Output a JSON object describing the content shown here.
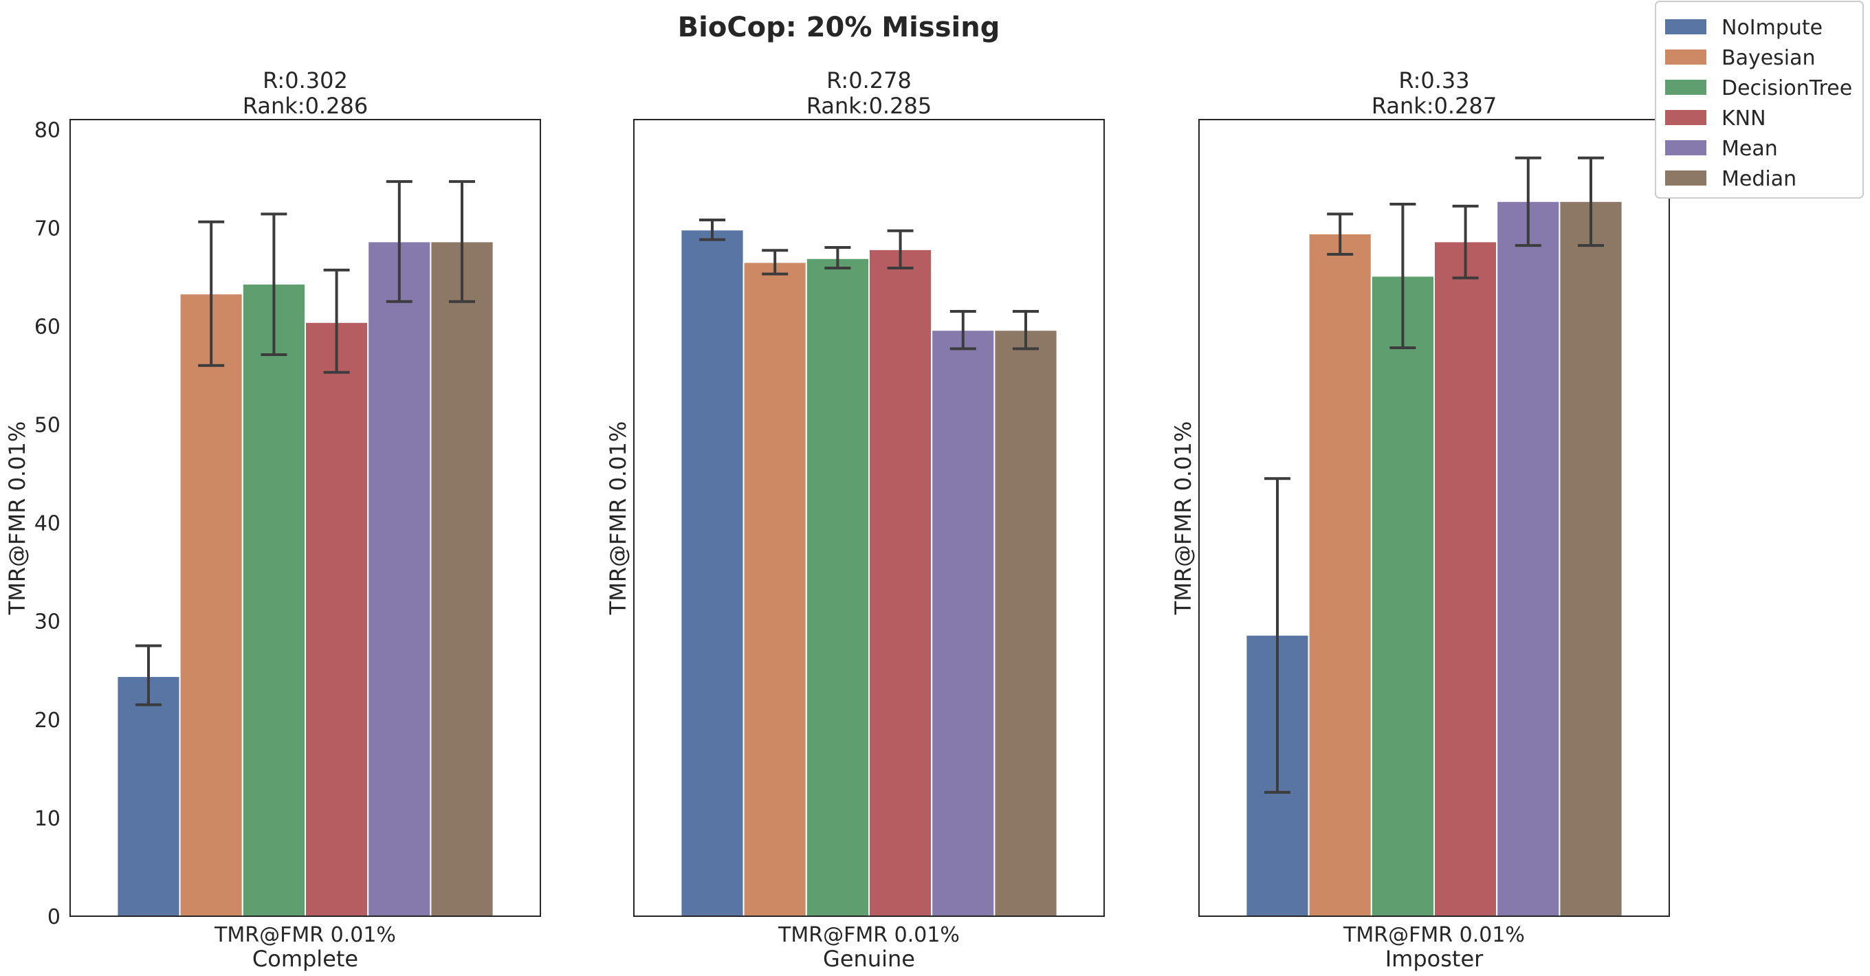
{
  "title": "BioCop: 20% Missing",
  "legend": {
    "placement": "top-right",
    "entries": [
      "NoImpute",
      "Bayesian",
      "DecisionTree",
      "KNN",
      "Mean",
      "Median"
    ]
  },
  "colors": {
    "NoImpute": "#5875a4",
    "Bayesian": "#cc8963",
    "DecisionTree": "#5f9e6e",
    "KNN": "#b55d60",
    "Mean": "#857aab",
    "Median": "#8d7866",
    "errorbar": "#3c3c3c",
    "frame": "#262626"
  },
  "chart_data": [
    {
      "type": "bar",
      "panel": "Complete",
      "title_line1": "R:0.302",
      "title_line2": "Rank:0.286",
      "xlabel": "Complete",
      "xtick": "TMR@FMR 0.01%",
      "ylabel": "TMR@FMR 0.01%",
      "ylim": [
        0,
        81
      ],
      "yticks": [
        "0",
        "10",
        "20",
        "30",
        "40",
        "50",
        "60",
        "70",
        "80"
      ],
      "grid": false,
      "series": [
        {
          "name": "NoImpute",
          "value": 24.4,
          "err_low": 21.5,
          "err_high": 27.5
        },
        {
          "name": "Bayesian",
          "value": 63.3,
          "err_low": 56.0,
          "err_high": 70.6
        },
        {
          "name": "DecisionTree",
          "value": 64.3,
          "err_low": 57.1,
          "err_high": 71.4
        },
        {
          "name": "KNN",
          "value": 60.4,
          "err_low": 55.3,
          "err_high": 65.7
        },
        {
          "name": "Mean",
          "value": 68.6,
          "err_low": 62.5,
          "err_high": 74.7
        },
        {
          "name": "Median",
          "value": 68.6,
          "err_low": 62.5,
          "err_high": 74.7
        }
      ]
    },
    {
      "type": "bar",
      "panel": "Genuine",
      "title_line1": "R:0.278",
      "title_line2": "Rank:0.285",
      "xlabel": "Genuine",
      "xtick": "TMR@FMR 0.01%",
      "ylabel": "TMR@FMR 0.01%",
      "ylim": [
        0,
        81
      ],
      "grid": false,
      "series": [
        {
          "name": "NoImpute",
          "value": 69.8,
          "err_low": 68.8,
          "err_high": 70.8
        },
        {
          "name": "Bayesian",
          "value": 66.5,
          "err_low": 65.3,
          "err_high": 67.7
        },
        {
          "name": "DecisionTree",
          "value": 66.9,
          "err_low": 65.9,
          "err_high": 68.0
        },
        {
          "name": "KNN",
          "value": 67.8,
          "err_low": 65.9,
          "err_high": 69.7
        },
        {
          "name": "Mean",
          "value": 59.6,
          "err_low": 57.7,
          "err_high": 61.5
        },
        {
          "name": "Median",
          "value": 59.6,
          "err_low": 57.7,
          "err_high": 61.5
        }
      ]
    },
    {
      "type": "bar",
      "panel": "Imposter",
      "title_line1": "R:0.33",
      "title_line2": "Rank:0.287",
      "xlabel": "Imposter",
      "xtick": "TMR@FMR 0.01%",
      "ylabel": "TMR@FMR 0.01%",
      "ylim": [
        0,
        81
      ],
      "grid": false,
      "series": [
        {
          "name": "NoImpute",
          "value": 28.6,
          "err_low": 12.6,
          "err_high": 44.5
        },
        {
          "name": "Bayesian",
          "value": 69.4,
          "err_low": 67.3,
          "err_high": 71.4
        },
        {
          "name": "DecisionTree",
          "value": 65.1,
          "err_low": 57.8,
          "err_high": 72.4
        },
        {
          "name": "KNN",
          "value": 68.6,
          "err_low": 64.9,
          "err_high": 72.2
        },
        {
          "name": "Mean",
          "value": 72.7,
          "err_low": 68.2,
          "err_high": 77.1
        },
        {
          "name": "Median",
          "value": 72.7,
          "err_low": 68.2,
          "err_high": 77.1
        }
      ]
    }
  ]
}
